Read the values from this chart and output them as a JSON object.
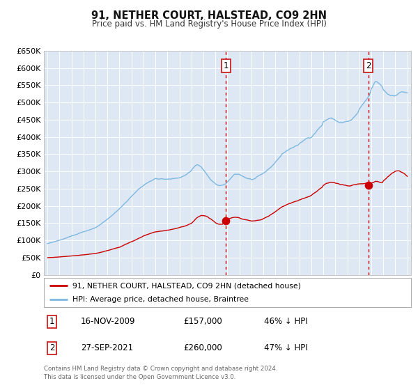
{
  "title": "91, NETHER COURT, HALSTEAD, CO9 2HN",
  "subtitle": "Price paid vs. HM Land Registry's House Price Index (HPI)",
  "background_color": "#ffffff",
  "plot_bg_color": "#dde8f4",
  "grid_color": "#ffffff",
  "hpi_color": "#7db8e0",
  "price_color": "#cc0000",
  "sale1_date_num": 2009.88,
  "sale1_price": 157000,
  "sale2_date_num": 2021.75,
  "sale2_price": 260000,
  "ylim": [
    0,
    650000
  ],
  "xlim_start": 1994.7,
  "xlim_end": 2025.3,
  "yticks": [
    0,
    50000,
    100000,
    150000,
    200000,
    250000,
    300000,
    350000,
    400000,
    450000,
    500000,
    550000,
    600000,
    650000
  ],
  "xticks": [
    1995,
    1996,
    1997,
    1998,
    1999,
    2000,
    2001,
    2002,
    2003,
    2004,
    2005,
    2006,
    2007,
    2008,
    2009,
    2010,
    2011,
    2012,
    2013,
    2014,
    2015,
    2016,
    2017,
    2018,
    2019,
    2020,
    2021,
    2022,
    2023,
    2024,
    2025
  ],
  "legend_red_label": "91, NETHER COURT, HALSTEAD, CO9 2HN (detached house)",
  "legend_blue_label": "HPI: Average price, detached house, Braintree",
  "table_row1": [
    "1",
    "16-NOV-2009",
    "£157,000",
    "46% ↓ HPI"
  ],
  "table_row2": [
    "2",
    "27-SEP-2021",
    "£260,000",
    "47% ↓ HPI"
  ],
  "footer": "Contains HM Land Registry data © Crown copyright and database right 2024.\nThis data is licensed under the Open Government Licence v3.0."
}
